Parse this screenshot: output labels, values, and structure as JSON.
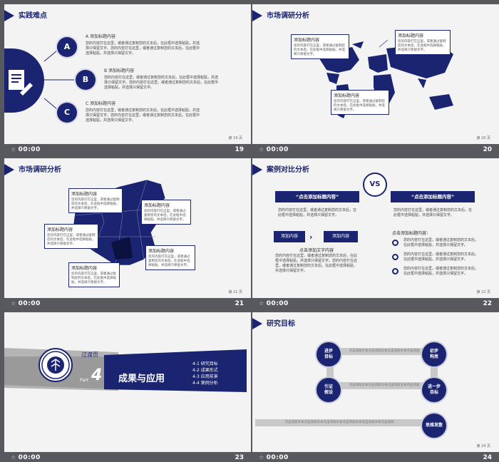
{
  "slides": [
    {
      "title": "实践难点",
      "page": "第 19 页",
      "time": "00:00",
      "number": "19",
      "items": [
        {
          "letter": "A",
          "heading": "A  添加标题内容",
          "text": "您的内容打在这里，或者通过复制您的文本后，在此框中选择粘贴，并选择只保留文字。您的内容打在这里，或者通过复制您的文本后，在此框中选择粘贴，并选择只保留文字。"
        },
        {
          "letter": "B",
          "heading": "B  添加标题内容",
          "text": "您的内容打在这里，或者通过复制您的文本后，在此框中选择粘贴，并选择只保留文字。您的内容打在这里，或者通过复制您的文本后，在此框中选择粘贴，并选择只保留文字。"
        },
        {
          "letter": "C",
          "heading": "C  添加标题内容",
          "text": "您的内容打在这里，或者通过复制您的文本后，在此框中选择粘贴，并选择只保留文字。您的内容打在这里，或者通过复制您的文本后，在此框中选择粘贴，并选择只保留文字。"
        }
      ]
    },
    {
      "title": "市场调研分析",
      "page": "第 20 页",
      "time": "00:00",
      "number": "20",
      "callouts": [
        {
          "heading": "添加标题内容",
          "text": "您的内容打在这里，或者通过复制您的文本后，在此框中选择粘贴，并选择只保留文字。"
        },
        {
          "heading": "添加标题内容",
          "text": "您的内容打在这里，或者通过复制您的文本后，在此框中选择粘贴，并选择只保留文字。"
        },
        {
          "heading": "添加标题内容",
          "text": "您的内容打在这里，或者通过复制您的文本后，在此框中选择粘贴，并选择只保留文字。"
        }
      ]
    },
    {
      "title": "市场调研分析",
      "page": "第 21 页",
      "time": "00:00",
      "number": "21",
      "callouts": [
        {
          "heading": "添加标题内容",
          "text": "您的内容打在这里，或者通过复制您的文本后，在此框中选择粘贴，并选择只保留文字。"
        },
        {
          "heading": "添加标题内容",
          "text": "您的内容打在这里，或者通过复制您的文本后，在此框中选择粘贴，并选择只保留文字。"
        },
        {
          "heading": "添加标题内容",
          "text": "您的内容打在这里，或者通过复制您的文本后，在此框中选择粘贴，并选择只保留文字。"
        },
        {
          "heading": "添加标题内容",
          "text": "您的内容打在这里，或者通过复制您的文本后，在此框中选择粘贴，并选择只保留文字。"
        },
        {
          "heading": "添加标题内容",
          "text": "您的内容打在这里，或者通过复制您的文本后，在此框中选择粘贴，并选择只保留文字。"
        }
      ]
    },
    {
      "title": "案例对比分析",
      "page": "第 22 页",
      "time": "00:00",
      "number": "22",
      "left_header": "“点击添加标题内容”",
      "right_header": "“点击添加标题内容”",
      "vs": "VS",
      "left_text": "您的内容打在这里，或者通过复制您的文本后，在此框中选择粘贴，并选择只保留文字。",
      "right_text": "您的内容打在这里，或者通过复制您的文本后，在此框中选择粘贴，并选择只保留文字。",
      "box1": "添加内容",
      "box2": "添加内容",
      "sub_title_left": "点击添加文字内容",
      "left_body": "您的内容打在这里，或者通过复制您的文本后，在此框中选择粘贴，并选择只保留文字。您的内容打在这里，或者通过复制您的文本后，在此框中选择粘贴，并选择只保留文字。",
      "sub_title_right": "点击添加标题内容：",
      "right_items": [
        "您的内容打在这里，或者通过复制您的文本后，在此框中选择粘贴，并选择只保留文字。",
        "您的内容打在这里，或者通过复制您的文本后，在此框中选择粘贴，并选择只保留文字。",
        "您的内容打在这里，或者通过复制您的文本后，在此框中选择粘贴，并选择只保留文字。"
      ]
    },
    {
      "title": "过渡页",
      "part_label": "Part",
      "part_num": "4",
      "main_title": "成果与应用",
      "time": "00:00",
      "number": "23",
      "menu": [
        "4-1 研究目标",
        "4-2 成果形式",
        "4-3 应用前景",
        "4-4 案例分析"
      ],
      "emblem_text": "PEKING UNIVERSITY 1898"
    },
    {
      "title": "研究目标",
      "page": "第 24 页",
      "time": "00:00",
      "number": "24",
      "nodes": [
        "进步\n目标",
        "初步\n构思",
        "引证\n假设",
        "进一步\n目标",
        "思维发散"
      ],
      "bar_text": "点击添加文本点击添加文本点击添加文本点击添加",
      "bar_text_long": "点击添加文本点击添加文本点击添加文本点击添加文本点击添加文本点击添加"
    }
  ],
  "colors": {
    "navy": "#1a2470",
    "background": "#58595e",
    "slide": "#f3f3f3"
  }
}
